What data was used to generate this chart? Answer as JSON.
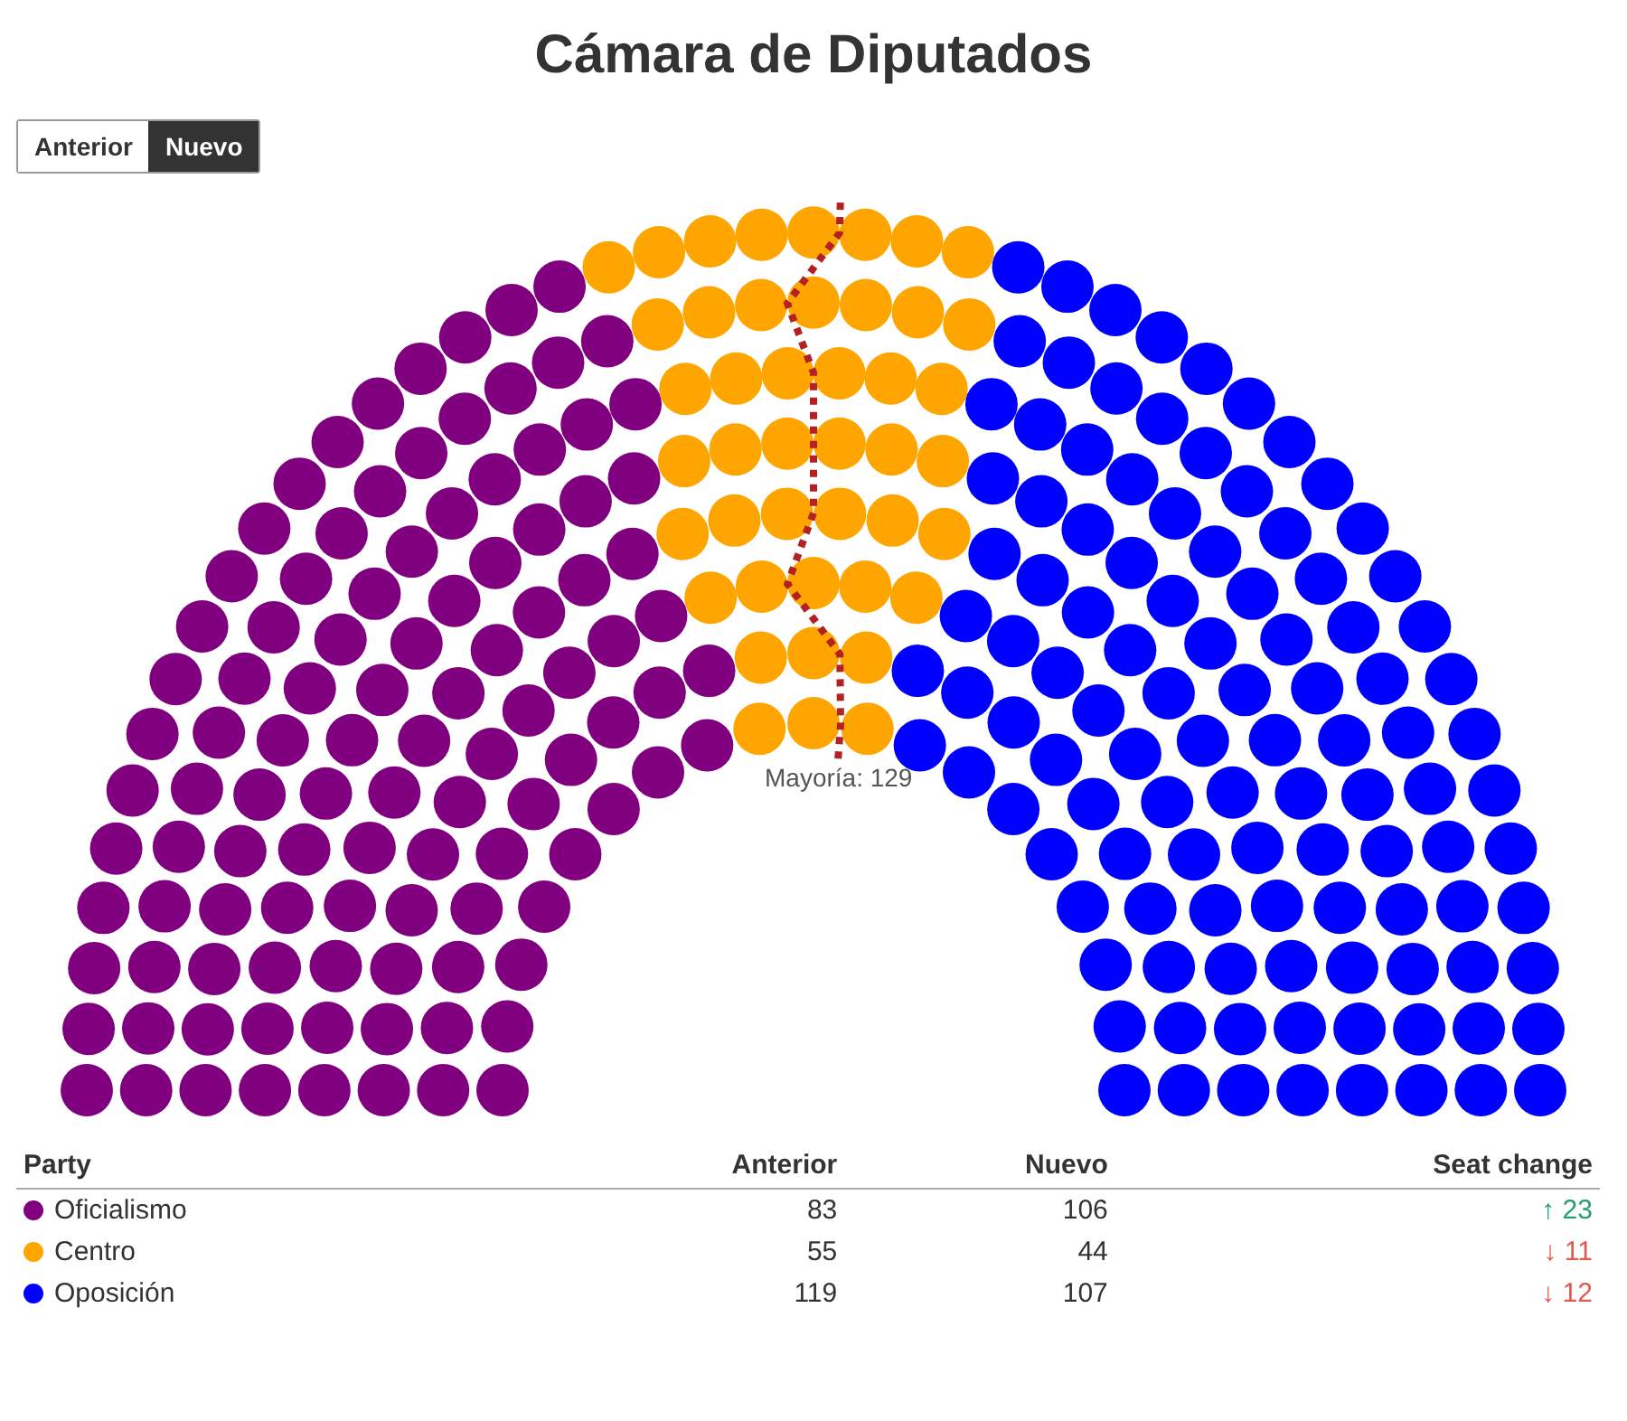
{
  "chart_data": {
    "type": "other",
    "title": "Cámara de Diputados",
    "categories": [
      "Oficialismo",
      "Centro",
      "Oposición"
    ],
    "colors": [
      "#800080",
      "#ffa500",
      "#0000ff"
    ],
    "series": [
      {
        "name": "Anterior",
        "values": [
          83,
          55,
          119
        ]
      },
      {
        "name": "Nuevo",
        "values": [
          106,
          44,
          107
        ]
      }
    ],
    "data_labels": true,
    "annotations": [
      "Mayoría: 129",
      "Party",
      "Seat change",
      "↑ 23",
      "↓ 11",
      "↓ 12"
    ]
  }
}
